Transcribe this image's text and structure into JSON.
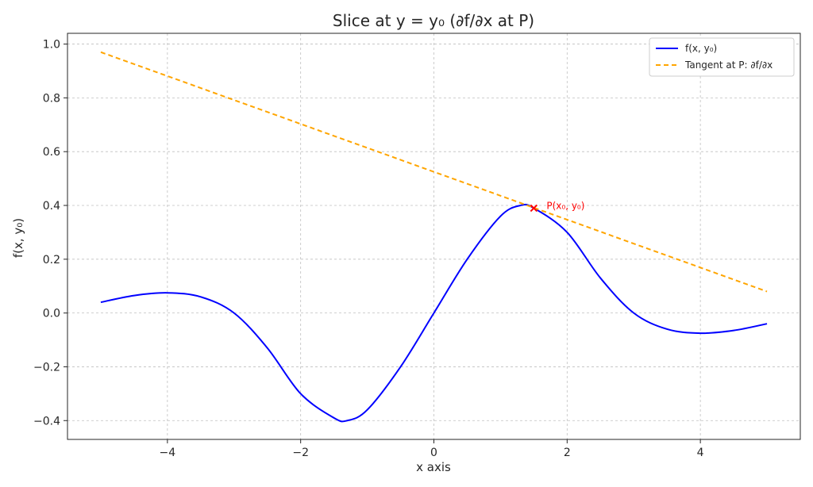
{
  "chart_data": {
    "type": "line",
    "title": "Slice at y = y₀ (∂f/∂x at P)",
    "xlabel": "x axis",
    "ylabel": "f(x, y₀)",
    "xlim": [
      -5.5,
      5.5
    ],
    "ylim": [
      -0.47,
      1.04
    ],
    "xticks": [
      -4,
      -2,
      0,
      2,
      4
    ],
    "yticks": [
      -0.4,
      -0.2,
      0.0,
      0.2,
      0.4,
      0.6,
      0.8,
      1.0
    ],
    "xtick_labels": [
      "−4",
      "−2",
      "0",
      "2",
      "4"
    ],
    "ytick_labels": [
      "−0.4",
      "−0.2",
      "0.0",
      "0.2",
      "0.4",
      "0.6",
      "0.8",
      "1.0"
    ],
    "grid": true,
    "legend_position": "top-right",
    "series": [
      {
        "name": "f(x, y₀)",
        "style": "solid",
        "color": "#0000ff",
        "x": [
          -5.0,
          -4.5,
          -4.0,
          -3.5,
          -3.0,
          -2.5,
          -2.0,
          -1.5,
          -1.3,
          -1.0,
          -0.5,
          0.0,
          0.5,
          1.0,
          1.3,
          1.5,
          2.0,
          2.5,
          3.0,
          3.5,
          4.0,
          4.5,
          5.0
        ],
        "y": [
          0.04,
          0.065,
          0.075,
          0.06,
          0.0,
          -0.13,
          -0.3,
          -0.39,
          -0.4,
          -0.36,
          -0.2,
          0.0,
          0.2,
          0.36,
          0.4,
          0.39,
          0.3,
          0.13,
          0.0,
          -0.06,
          -0.075,
          -0.065,
          -0.04
        ]
      },
      {
        "name": "Tangent at P: ∂f/∂x",
        "style": "dashed",
        "color": "#ffa500",
        "x": [
          -5.0,
          5.0
        ],
        "y": [
          0.97,
          0.08
        ]
      }
    ],
    "points": [
      {
        "label": "P(x₀, y₀)",
        "x": 1.5,
        "y": 0.39,
        "color": "#ff0000",
        "marker": "x"
      }
    ]
  }
}
